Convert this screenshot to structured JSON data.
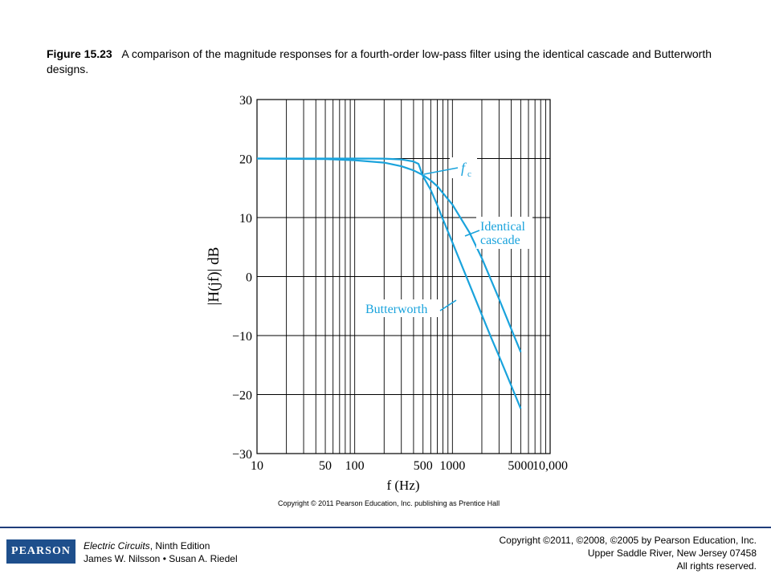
{
  "caption": {
    "figure_label": "Figure 15.23",
    "text": "A comparison of the magnitude responses for a fourth-order low-pass filter using the identical cascade and Butterworth designs."
  },
  "chart_data": {
    "type": "line",
    "xscale": "log",
    "xlim": [
      10,
      10000
    ],
    "ylim": [
      -30,
      30
    ],
    "xlabel": "f (Hz)",
    "ylabel": "|H(jf)| dB",
    "x_ticks": [
      "10",
      "50",
      "100",
      "500",
      "1000",
      "5000",
      "10,000"
    ],
    "y_ticks": [
      "30",
      "20",
      "10",
      "0",
      "−10",
      "−20",
      "−30"
    ],
    "grid": true,
    "series": [
      {
        "name": "Identical cascade",
        "color": "#1aa3dc",
        "x": [
          10,
          50,
          100,
          200,
          300,
          400,
          500,
          600,
          700,
          1000,
          1500,
          2000,
          3000,
          4000,
          5000
        ],
        "y": [
          20,
          19.9,
          19.7,
          19.3,
          18.7,
          18.0,
          17.2,
          16.3,
          15.3,
          12.2,
          7.4,
          3.1,
          -3.8,
          -8.9,
          -12.8
        ]
      },
      {
        "name": "Butterworth",
        "color": "#1aa3dc",
        "x": [
          10,
          100,
          200,
          300,
          400,
          450,
          500,
          600,
          700,
          800,
          1000,
          1500,
          2000,
          2500,
          3000,
          4000,
          5000
        ],
        "y": [
          20,
          20,
          19.98,
          19.85,
          19.5,
          19.1,
          17.0,
          14.7,
          12.1,
          9.7,
          5.8,
          -1.4,
          -6.5,
          -10.4,
          -13.5,
          -18.5,
          -22.4
        ]
      }
    ],
    "annotations": [
      {
        "text": "f",
        "sub": "c",
        "points_to": [
          500,
          17
        ]
      },
      {
        "text": "Identical",
        "text2": "cascade"
      },
      {
        "text": "Butterworth"
      }
    ]
  },
  "source_note": "Copyright © 2011 Pearson Education, Inc. publishing as Prentice Hall",
  "footer": {
    "logo": "PEARSON",
    "book_title": "Electric Circuits",
    "edition": ", Ninth Edition",
    "authors": "James W. Nilsson • Susan A. Riedel",
    "rights_line1": "Copyright ©2011, ©2008, ©2005 by Pearson Education, Inc.",
    "rights_line2": "Upper Saddle River, New Jersey 07458",
    "rights_line3": "All rights reserved."
  }
}
